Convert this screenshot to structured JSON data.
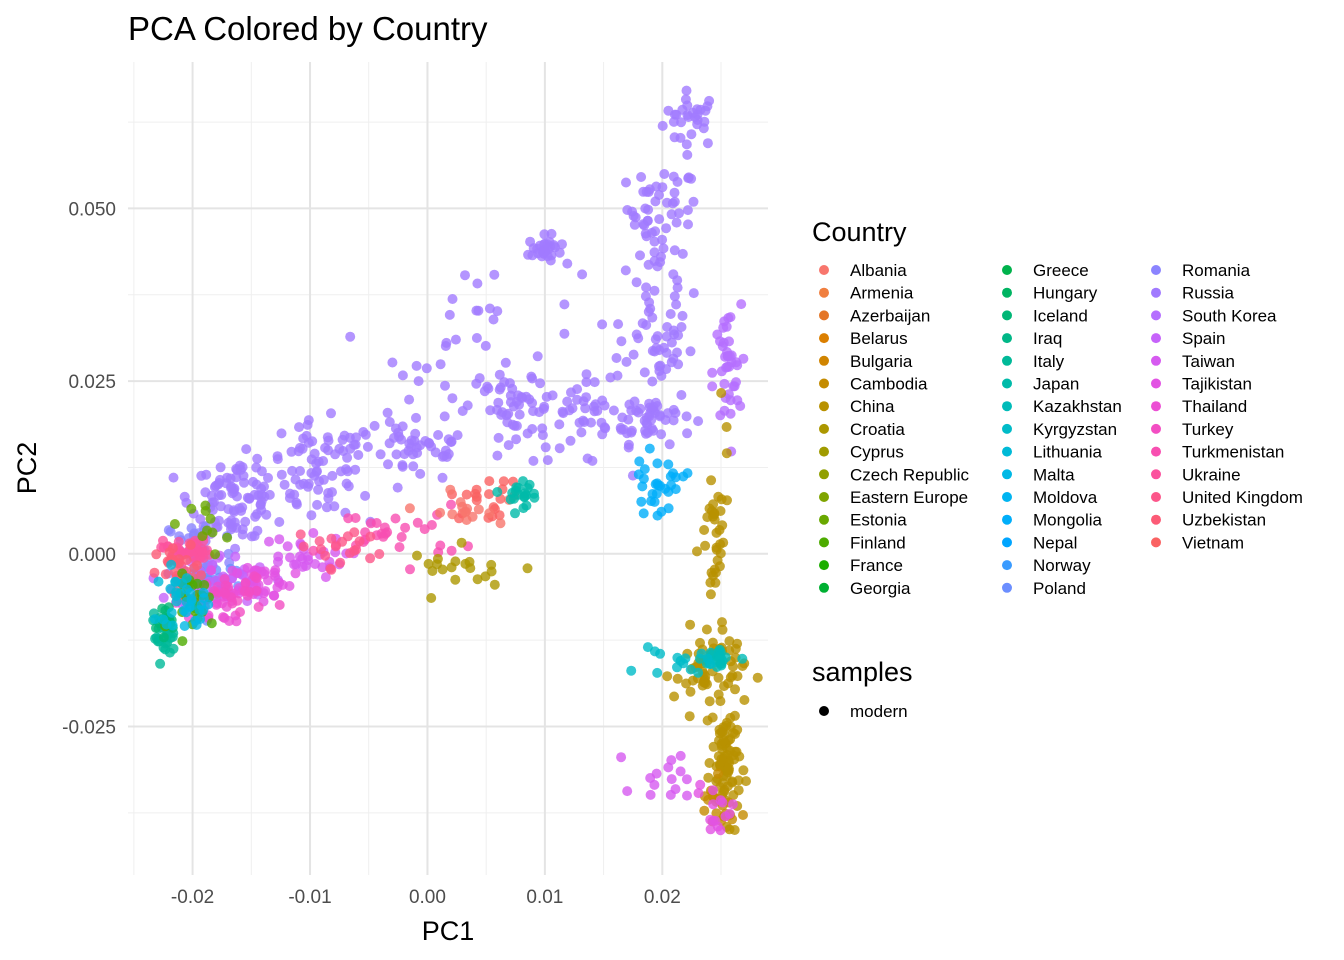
{
  "chart_data": {
    "type": "scatter",
    "title": "PCA Colored by Country",
    "xlabel": "PC1",
    "ylabel": "PC2",
    "xlim": [
      -0.0255,
      0.029
    ],
    "ylim": [
      -0.0465,
      0.0712
    ],
    "x_ticks": [
      -0.02,
      -0.01,
      0.0,
      0.01,
      0.02
    ],
    "x_tick_labels": [
      "-0.02",
      "-0.01",
      "0.00",
      "0.01",
      "0.02"
    ],
    "y_ticks": [
      -0.025,
      0.0,
      0.025,
      0.05
    ],
    "y_tick_labels": [
      "-0.025",
      "0.000",
      "0.025",
      "0.050"
    ],
    "grid": true,
    "legend_placement": "right",
    "legend_title": "Country",
    "countries": [
      {
        "name": "Albania",
        "color": "#F8766D"
      },
      {
        "name": "Armenia",
        "color": "#F07F3F"
      },
      {
        "name": "Azerbaijan",
        "color": "#E47627"
      },
      {
        "name": "Belarus",
        "color": "#DB7F00"
      },
      {
        "name": "Bulgaria",
        "color": "#D08400"
      },
      {
        "name": "Cambodia",
        "color": "#C48B00"
      },
      {
        "name": "China",
        "color": "#B89100"
      },
      {
        "name": "Croatia",
        "color": "#AC9700"
      },
      {
        "name": "Cyprus",
        "color": "#A09B00"
      },
      {
        "name": "Czech Republic",
        "color": "#91A000"
      },
      {
        "name": "Eastern Europe",
        "color": "#7FA400"
      },
      {
        "name": "Estonia",
        "color": "#69A800"
      },
      {
        "name": "Finland",
        "color": "#4DAB00"
      },
      {
        "name": "France",
        "color": "#1CAE00"
      },
      {
        "name": "Georgia",
        "color": "#00B032"
      },
      {
        "name": "Greece",
        "color": "#00B24C"
      },
      {
        "name": "Hungary",
        "color": "#00B462"
      },
      {
        "name": "Iceland",
        "color": "#00B676"
      },
      {
        "name": "Iraq",
        "color": "#00B787"
      },
      {
        "name": "Italy",
        "color": "#00B998"
      },
      {
        "name": "Japan",
        "color": "#00BAA9"
      },
      {
        "name": "Kazakhstan",
        "color": "#00BBB9"
      },
      {
        "name": "Kyrgyzstan",
        "color": "#00BBC8"
      },
      {
        "name": "Lithuania",
        "color": "#00BAD7"
      },
      {
        "name": "Malta",
        "color": "#00B8E5"
      },
      {
        "name": "Moldova",
        "color": "#00B4F1"
      },
      {
        "name": "Mongolia",
        "color": "#00AEFA"
      },
      {
        "name": "Nepal",
        "color": "#00A5FF"
      },
      {
        "name": "Norway",
        "color": "#3A9BFF"
      },
      {
        "name": "Poland",
        "color": "#6B8EFF"
      },
      {
        "name": "Romania",
        "color": "#8B84FF"
      },
      {
        "name": "Russia",
        "color": "#A17AFF"
      },
      {
        "name": "South Korea",
        "color": "#B56FFF"
      },
      {
        "name": "Spain",
        "color": "#C663FA"
      },
      {
        "name": "Taiwan",
        "color": "#D65AF0"
      },
      {
        "name": "Tajikistan",
        "color": "#E253E3"
      },
      {
        "name": "Thailand",
        "color": "#EC4FD4"
      },
      {
        "name": "Turkey",
        "color": "#F34EC3"
      },
      {
        "name": "Turkmenistan",
        "color": "#F84FB1"
      },
      {
        "name": "Ukraine",
        "color": "#FB529E"
      },
      {
        "name": "United Kingdom",
        "color": "#FC568A"
      },
      {
        "name": "Uzbekistan",
        "color": "#FC5B76"
      },
      {
        "name": "Vietnam",
        "color": "#FA6262"
      }
    ],
    "shape_legend": {
      "title": "samples",
      "items": [
        "modern"
      ]
    },
    "clusters": [
      {
        "country": "Russia",
        "cx": 0.0225,
        "cy": 0.063,
        "sx": 0.0012,
        "sy": 0.002,
        "n": 30
      },
      {
        "country": "Russia",
        "cx": 0.02,
        "cy": 0.05,
        "sx": 0.0015,
        "sy": 0.003,
        "n": 40
      },
      {
        "country": "Russia",
        "cx": 0.0195,
        "cy": 0.04,
        "sx": 0.0015,
        "sy": 0.004,
        "n": 30
      },
      {
        "country": "Russia",
        "cx": 0.019,
        "cy": 0.03,
        "sx": 0.0018,
        "sy": 0.003,
        "n": 40
      },
      {
        "country": "Russia",
        "cx": 0.019,
        "cy": 0.02,
        "sx": 0.0018,
        "sy": 0.002,
        "n": 50
      },
      {
        "country": "Russia",
        "cx": 0.01,
        "cy": 0.044,
        "sx": 0.0007,
        "sy": 0.001,
        "n": 30
      },
      {
        "country": "Russia",
        "cx": 0.005,
        "cy": 0.03,
        "sx": 0.004,
        "sy": 0.006,
        "n": 40
      },
      {
        "country": "Russia",
        "cx": 0.0075,
        "cy": 0.021,
        "sx": 0.0015,
        "sy": 0.002,
        "n": 40
      },
      {
        "country": "Russia",
        "cx": 0.013,
        "cy": 0.019,
        "sx": 0.002,
        "sy": 0.003,
        "n": 40
      },
      {
        "country": "Russia",
        "cx": -0.001,
        "cy": 0.016,
        "sx": 0.0025,
        "sy": 0.003,
        "n": 50
      },
      {
        "country": "Russia",
        "cx": -0.009,
        "cy": 0.013,
        "sx": 0.0025,
        "sy": 0.003,
        "n": 60
      },
      {
        "country": "Russia",
        "cx": -0.0165,
        "cy": 0.008,
        "sx": 0.0018,
        "sy": 0.003,
        "n": 80
      },
      {
        "country": "Russia",
        "cx": -0.012,
        "cy": 0.008,
        "sx": 0.003,
        "sy": 0.002,
        "n": 30
      },
      {
        "country": "South Korea",
        "cx": 0.0255,
        "cy": 0.026,
        "sx": 0.0006,
        "sy": 0.005,
        "n": 40
      },
      {
        "country": "Romania",
        "cx": -0.0195,
        "cy": 0.0,
        "sx": 0.0015,
        "sy": 0.003,
        "n": 40
      },
      {
        "country": "Poland",
        "cx": -0.0185,
        "cy": -0.004,
        "sx": 0.0015,
        "sy": 0.002,
        "n": 30
      },
      {
        "country": "Spain",
        "cx": -0.0175,
        "cy": -0.004,
        "sx": 0.002,
        "sy": 0.002,
        "n": 40
      },
      {
        "country": "Tajikistan",
        "cx": -0.0145,
        "cy": -0.004,
        "sx": 0.0015,
        "sy": 0.0015,
        "n": 40
      },
      {
        "country": "Taiwan",
        "cx": -0.011,
        "cy": -0.0005,
        "sx": 0.002,
        "sy": 0.0015,
        "n": 30
      },
      {
        "country": "Thailand",
        "cx": -0.0185,
        "cy": -0.007,
        "sx": 0.0015,
        "sy": 0.0015,
        "n": 30
      },
      {
        "country": "Ukraine",
        "cx": -0.0205,
        "cy": 0.0005,
        "sx": 0.001,
        "sy": 0.001,
        "n": 40
      },
      {
        "country": "Uzbekistan",
        "cx": -0.021,
        "cy": -0.003,
        "sx": 0.001,
        "sy": 0.002,
        "n": 30
      },
      {
        "country": "Turkey",
        "cx": -0.016,
        "cy": -0.006,
        "sx": 0.0015,
        "sy": 0.0015,
        "n": 20
      },
      {
        "country": "Turkmenistan",
        "cx": -0.003,
        "cy": 0.003,
        "sx": 0.003,
        "sy": 0.002,
        "n": 30
      },
      {
        "country": "United Kingdom",
        "cx": -0.007,
        "cy": 0.001,
        "sx": 0.002,
        "sy": 0.0015,
        "n": 20
      },
      {
        "country": "Vietnam",
        "cx": 0.005,
        "cy": 0.008,
        "sx": 0.0015,
        "sy": 0.0015,
        "n": 20
      },
      {
        "country": "Albania",
        "cx": 0.003,
        "cy": 0.006,
        "sx": 0.0015,
        "sy": 0.0015,
        "n": 15
      },
      {
        "country": "Japan",
        "cx": 0.008,
        "cy": 0.009,
        "sx": 0.0012,
        "sy": 0.001,
        "n": 20
      },
      {
        "country": "Italy",
        "cx": -0.0225,
        "cy": -0.012,
        "sx": 0.0005,
        "sy": 0.0015,
        "n": 30
      },
      {
        "country": "Iceland",
        "cx": -0.022,
        "cy": -0.01,
        "sx": 0.0005,
        "sy": 0.0015,
        "n": 15
      },
      {
        "country": "Finland",
        "cx": -0.0195,
        "cy": -0.007,
        "sx": 0.001,
        "sy": 0.002,
        "n": 25
      },
      {
        "country": "Estonia",
        "cx": -0.0185,
        "cy": 0.004,
        "sx": 0.0008,
        "sy": 0.002,
        "n": 10
      },
      {
        "country": "Lithuania",
        "cx": -0.0215,
        "cy": -0.006,
        "sx": 0.0008,
        "sy": 0.002,
        "n": 20
      },
      {
        "country": "Malta",
        "cx": -0.02,
        "cy": -0.008,
        "sx": 0.0008,
        "sy": 0.0015,
        "n": 15
      },
      {
        "country": "Croatia",
        "cx": 0.0035,
        "cy": -0.002,
        "sx": 0.0025,
        "sy": 0.0015,
        "n": 20
      },
      {
        "country": "China",
        "cx": 0.024,
        "cy": -0.017,
        "sx": 0.0015,
        "sy": 0.003,
        "n": 60
      },
      {
        "country": "China",
        "cx": 0.0255,
        "cy": -0.03,
        "sx": 0.0006,
        "sy": 0.004,
        "n": 80
      },
      {
        "country": "China",
        "cx": 0.0245,
        "cy": 0.0,
        "sx": 0.0006,
        "sy": 0.008,
        "n": 40
      },
      {
        "country": "Cambodia",
        "cx": 0.0245,
        "cy": -0.037,
        "sx": 0.0008,
        "sy": 0.002,
        "n": 20
      },
      {
        "country": "Kazakhstan",
        "cx": 0.025,
        "cy": -0.015,
        "sx": 0.0008,
        "sy": 0.001,
        "n": 20
      },
      {
        "country": "Kyrgyzstan",
        "cx": 0.021,
        "cy": -0.016,
        "sx": 0.0015,
        "sy": 0.001,
        "n": 15
      },
      {
        "country": "Mongolia",
        "cx": 0.0195,
        "cy": 0.01,
        "sx": 0.0012,
        "sy": 0.002,
        "n": 30
      },
      {
        "country": "Taiwan",
        "cx": 0.021,
        "cy": -0.032,
        "sx": 0.0015,
        "sy": 0.002,
        "n": 15
      },
      {
        "country": "Tajikistan",
        "cx": 0.0245,
        "cy": -0.037,
        "sx": 0.0008,
        "sy": 0.002,
        "n": 15
      }
    ]
  }
}
